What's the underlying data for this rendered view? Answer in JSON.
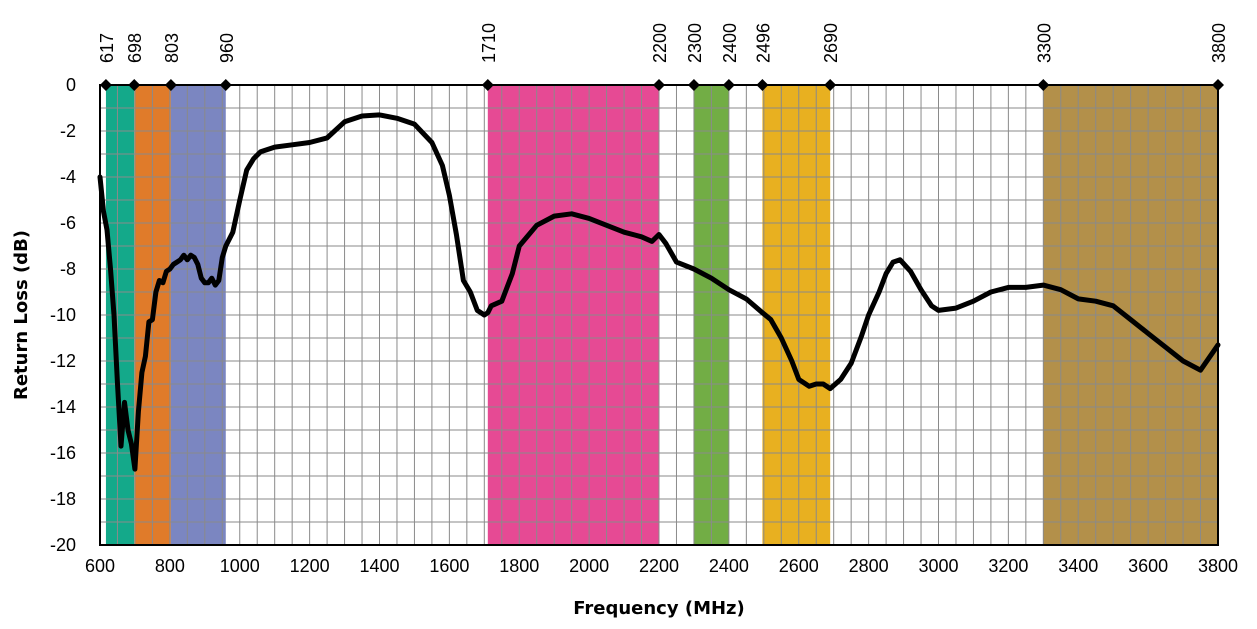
{
  "chart_data": {
    "type": "line",
    "title": "",
    "xlabel": "Frequency (MHz)",
    "ylabel": "Return Loss (dB)",
    "xlim": [
      600,
      3800
    ],
    "ylim": [
      -20,
      0
    ],
    "x_ticks": [
      "600",
      "800",
      "1000",
      "1200",
      "1400",
      "1600",
      "1800",
      "2000",
      "2200",
      "2400",
      "2600",
      "2800",
      "3000",
      "3200",
      "3400",
      "3600",
      "3800"
    ],
    "y_ticks": [
      "0",
      "-2",
      "-4",
      "-6",
      "-8",
      "-10",
      "-12",
      "-14",
      "-16",
      "-18",
      "-20"
    ],
    "grid": true,
    "grid_minor_x_step": 50,
    "grid_y_step": 1,
    "band_markers": [
      "617",
      "698",
      "803",
      "960",
      "1710",
      "2200",
      "2300",
      "2400",
      "2496",
      "2690",
      "3300",
      "3800"
    ],
    "bands": [
      {
        "from": 617,
        "to": 698,
        "color": "#14a98a"
      },
      {
        "from": 698,
        "to": 803,
        "color": "#e07b2a"
      },
      {
        "from": 803,
        "to": 960,
        "color": "#7b86c1"
      },
      {
        "from": 1710,
        "to": 2200,
        "color": "#e64a94"
      },
      {
        "from": 2300,
        "to": 2400,
        "color": "#72ad45"
      },
      {
        "from": 2496,
        "to": 2690,
        "color": "#e8b020"
      },
      {
        "from": 3300,
        "to": 3800,
        "color": "#b3904a"
      }
    ],
    "series": [
      {
        "color": "#000000",
        "x": [
          600,
          610,
          620,
          630,
          640,
          650,
          660,
          670,
          680,
          690,
          700,
          710,
          720,
          730,
          740,
          750,
          760,
          770,
          780,
          790,
          800,
          810,
          820,
          830,
          840,
          850,
          860,
          870,
          880,
          890,
          900,
          910,
          920,
          930,
          940,
          950,
          960,
          980,
          1000,
          1020,
          1040,
          1060,
          1100,
          1150,
          1200,
          1250,
          1300,
          1350,
          1400,
          1450,
          1500,
          1550,
          1580,
          1600,
          1620,
          1640,
          1660,
          1680,
          1700,
          1710,
          1720,
          1750,
          1780,
          1800,
          1850,
          1900,
          1950,
          2000,
          2050,
          2100,
          2150,
          2180,
          2200,
          2220,
          2250,
          2300,
          2350,
          2400,
          2450,
          2496,
          2520,
          2550,
          2580,
          2600,
          2630,
          2650,
          2670,
          2690,
          2720,
          2750,
          2780,
          2800,
          2830,
          2850,
          2870,
          2890,
          2920,
          2950,
          2980,
          3000,
          3050,
          3100,
          3150,
          3200,
          3250,
          3300,
          3350,
          3400,
          3450,
          3500,
          3550,
          3600,
          3650,
          3700,
          3750,
          3800
        ],
        "values": [
          -4.0,
          -5.5,
          -6.3,
          -8.0,
          -10.0,
          -13.0,
          -15.7,
          -13.8,
          -15.0,
          -15.6,
          -16.7,
          -14.2,
          -12.5,
          -11.8,
          -10.3,
          -10.2,
          -9.0,
          -8.5,
          -8.6,
          -8.1,
          -8.0,
          -7.8,
          -7.7,
          -7.6,
          -7.4,
          -7.6,
          -7.4,
          -7.5,
          -7.8,
          -8.4,
          -8.6,
          -8.6,
          -8.4,
          -8.7,
          -8.5,
          -7.5,
          -7.0,
          -6.4,
          -5.0,
          -3.7,
          -3.2,
          -2.9,
          -2.7,
          -2.6,
          -2.5,
          -2.3,
          -1.6,
          -1.35,
          -1.3,
          -1.45,
          -1.7,
          -2.5,
          -3.5,
          -4.8,
          -6.5,
          -8.5,
          -9.0,
          -9.8,
          -10.0,
          -9.9,
          -9.6,
          -9.4,
          -8.2,
          -7.0,
          -6.1,
          -5.7,
          -5.6,
          -5.8,
          -6.1,
          -6.4,
          -6.6,
          -6.8,
          -6.5,
          -6.9,
          -7.7,
          -8.0,
          -8.4,
          -8.9,
          -9.3,
          -9.9,
          -10.2,
          -11.0,
          -12.0,
          -12.8,
          -13.1,
          -13.0,
          -13.0,
          -13.2,
          -12.8,
          -12.1,
          -10.9,
          -10.0,
          -9.0,
          -8.2,
          -7.7,
          -7.6,
          -8.1,
          -8.9,
          -9.6,
          -9.8,
          -9.7,
          -9.4,
          -9.0,
          -8.8,
          -8.8,
          -8.7,
          -8.9,
          -9.3,
          -9.4,
          -9.6,
          -10.2,
          -10.8,
          -11.4,
          -12.0,
          -12.4,
          -11.3
        ]
      }
    ]
  }
}
